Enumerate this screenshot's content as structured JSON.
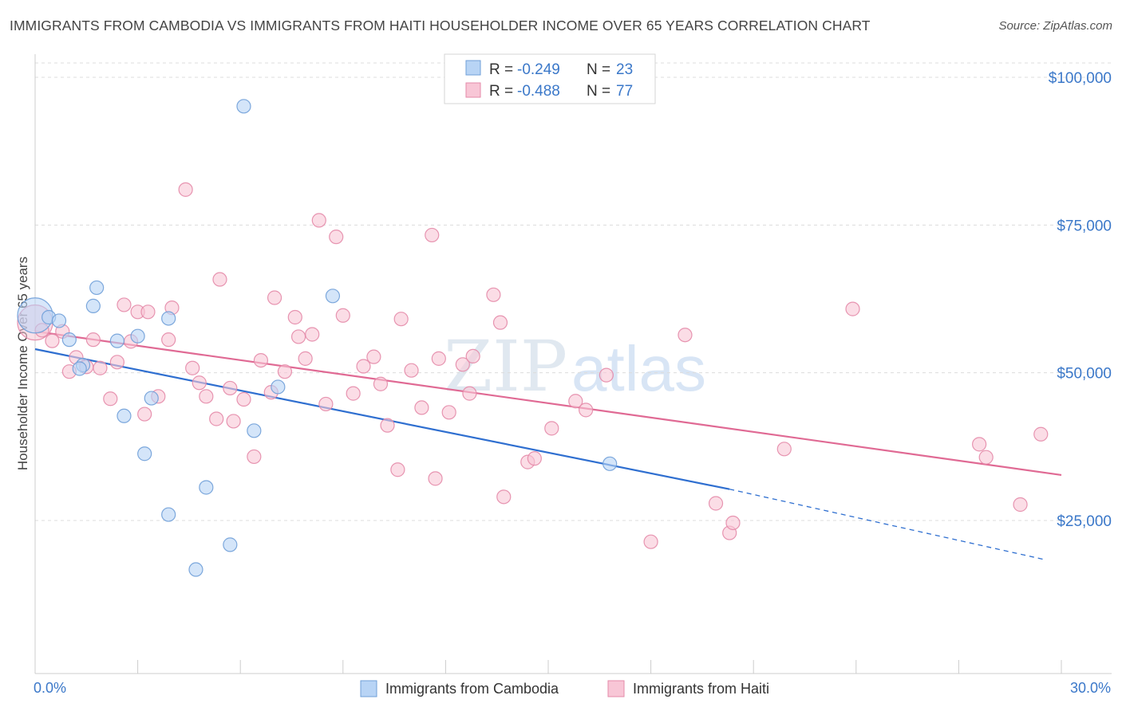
{
  "header": {
    "title": "IMMIGRANTS FROM CAMBODIA VS IMMIGRANTS FROM HAITI HOUSEHOLDER INCOME OVER 65 YEARS CORRELATION CHART",
    "source": "Source: ZipAtlas.com"
  },
  "watermark": {
    "part1": "ZIP",
    "part2": "atlas"
  },
  "legend": {
    "r_label": "R =",
    "n_label": "N =",
    "rows": [
      {
        "r": "-0.249",
        "n": "23"
      },
      {
        "r": "-0.488",
        "n": "77"
      }
    ]
  },
  "colors": {
    "cambodia_fill": "#b8d4f5",
    "cambodia_stroke": "#6f9fd8",
    "cambodia_line": "#2f6fd0",
    "haiti_fill": "#f8c6d6",
    "haiti_stroke": "#e48aa8",
    "haiti_line": "#e06a94",
    "tick_text": "#3b78c9",
    "grid": "#dcdcdc"
  },
  "chart_data": {
    "type": "scatter",
    "title": "IMMIGRANTS FROM CAMBODIA VS IMMIGRANTS FROM HAITI HOUSEHOLDER INCOME OVER 65 YEARS CORRELATION CHART",
    "xlabel": "",
    "ylabel": "Householder Income Over 65 years",
    "xlim": [
      0,
      30
    ],
    "ylim": [
      0,
      105000
    ],
    "x_tick_labels": [
      "0.0%",
      "30.0%"
    ],
    "y_ticks": [
      {
        "value": 25000,
        "label": "$25,000"
      },
      {
        "value": 50000,
        "label": "$50,000"
      },
      {
        "value": 75000,
        "label": "$75,000"
      },
      {
        "value": 100000,
        "label": "$100,000"
      }
    ],
    "grid": true,
    "legend_position": "top-center",
    "series": [
      {
        "name": "Immigrants from Cambodia",
        "r": -0.249,
        "n": 23,
        "trend": {
          "x0": 0,
          "y0": 54000,
          "x1": 20.3,
          "y1": 30300,
          "dash_to_x": 29.5,
          "dash_to_y": 18400
        },
        "points": [
          [
            0.0,
            59700
          ],
          [
            0.4,
            59400
          ],
          [
            0.7,
            58800
          ],
          [
            1.0,
            55600
          ],
          [
            1.4,
            51300
          ],
          [
            1.7,
            61300
          ],
          [
            1.8,
            64400
          ],
          [
            1.3,
            50700
          ],
          [
            2.4,
            55400
          ],
          [
            2.6,
            42700
          ],
          [
            3.0,
            56200
          ],
          [
            3.2,
            36300
          ],
          [
            3.4,
            45700
          ],
          [
            3.9,
            59200
          ],
          [
            3.9,
            26000
          ],
          [
            4.7,
            16700
          ],
          [
            5.0,
            30600
          ],
          [
            5.7,
            20900
          ],
          [
            6.1,
            95100
          ],
          [
            6.4,
            40200
          ],
          [
            7.1,
            47600
          ],
          [
            8.7,
            63000
          ],
          [
            16.8,
            34600
          ]
        ]
      },
      {
        "name": "Immigrants from Haiti",
        "r": -0.488,
        "n": 77,
        "trend": {
          "x0": 0,
          "y0": 57000,
          "x1": 30,
          "y1": 32700
        },
        "points": [
          [
            0.0,
            58500
          ],
          [
            0.2,
            57200
          ],
          [
            0.5,
            55400
          ],
          [
            0.8,
            57000
          ],
          [
            1.0,
            50200
          ],
          [
            1.2,
            52600
          ],
          [
            1.5,
            51000
          ],
          [
            1.7,
            55600
          ],
          [
            1.9,
            50800
          ],
          [
            2.2,
            45600
          ],
          [
            2.4,
            51800
          ],
          [
            2.6,
            61500
          ],
          [
            2.8,
            55300
          ],
          [
            3.0,
            60300
          ],
          [
            3.2,
            43000
          ],
          [
            3.3,
            60300
          ],
          [
            3.6,
            46000
          ],
          [
            3.9,
            55600
          ],
          [
            4.0,
            61000
          ],
          [
            4.4,
            81000
          ],
          [
            4.6,
            50800
          ],
          [
            4.8,
            48300
          ],
          [
            5.0,
            46000
          ],
          [
            5.3,
            42200
          ],
          [
            5.4,
            65800
          ],
          [
            5.7,
            47400
          ],
          [
            5.8,
            41800
          ],
          [
            6.1,
            45500
          ],
          [
            6.4,
            35800
          ],
          [
            6.6,
            52100
          ],
          [
            6.9,
            46700
          ],
          [
            7.0,
            62700
          ],
          [
            7.3,
            50200
          ],
          [
            7.6,
            59400
          ],
          [
            7.7,
            56100
          ],
          [
            7.9,
            52400
          ],
          [
            8.1,
            56500
          ],
          [
            8.3,
            75800
          ],
          [
            8.5,
            44700
          ],
          [
            8.8,
            73000
          ],
          [
            9.0,
            59700
          ],
          [
            9.3,
            46500
          ],
          [
            9.6,
            51100
          ],
          [
            9.9,
            52700
          ],
          [
            10.1,
            48100
          ],
          [
            10.3,
            41100
          ],
          [
            10.6,
            33600
          ],
          [
            10.7,
            59100
          ],
          [
            11.0,
            50400
          ],
          [
            11.3,
            44100
          ],
          [
            11.6,
            73300
          ],
          [
            11.7,
            32100
          ],
          [
            11.8,
            52400
          ],
          [
            12.1,
            43300
          ],
          [
            12.5,
            51400
          ],
          [
            12.7,
            46500
          ],
          [
            12.8,
            52800
          ],
          [
            13.4,
            63200
          ],
          [
            13.6,
            58500
          ],
          [
            13.7,
            29000
          ],
          [
            14.4,
            34900
          ],
          [
            14.6,
            35500
          ],
          [
            15.1,
            40600
          ],
          [
            15.8,
            45200
          ],
          [
            16.1,
            43700
          ],
          [
            16.7,
            49600
          ],
          [
            18.0,
            21400
          ],
          [
            19.0,
            56400
          ],
          [
            19.9,
            27900
          ],
          [
            20.3,
            22900
          ],
          [
            20.4,
            24600
          ],
          [
            21.9,
            37100
          ],
          [
            23.9,
            60800
          ],
          [
            27.6,
            37900
          ],
          [
            27.8,
            35700
          ],
          [
            28.8,
            27700
          ],
          [
            29.4,
            39600
          ]
        ]
      }
    ],
    "bottom_legend": [
      "Immigrants from Cambodia",
      "Immigrants from Haiti"
    ]
  }
}
